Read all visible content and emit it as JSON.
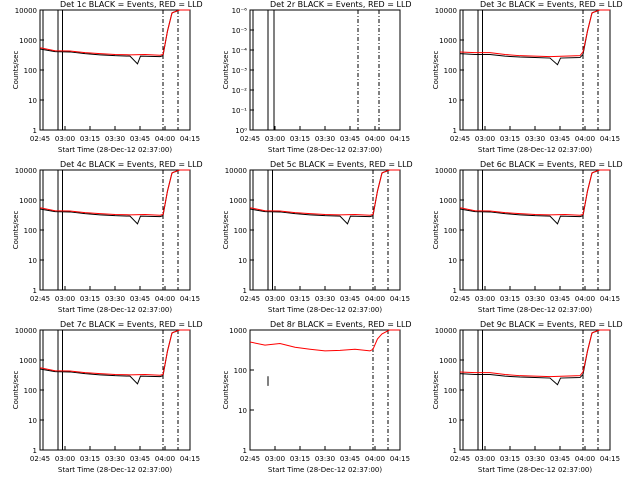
{
  "figure": {
    "xlabel": "Start Time (28-Dec-12 02:37:00)",
    "ylabel": "Counts/sec",
    "colors": {
      "events": "#000000",
      "lld": "#ff0000"
    }
  },
  "chart_data": [
    {
      "type": "line",
      "title": "Det 1c BLACK = Events, RED = LLD",
      "x_tick_labels": [
        "02:45",
        "03:00",
        "03:15",
        "03:30",
        "03:45",
        "04:00",
        "04:15"
      ],
      "xlim": [
        0,
        100
      ],
      "ylim": [
        1,
        10000
      ],
      "y_tick_labels": [
        "1",
        "10",
        "100",
        "1000",
        "10000"
      ],
      "yscale": "log",
      "vlines_solid": [
        2,
        12,
        15
      ],
      "vlines_dash": [
        82,
        92
      ],
      "lld": [
        [
          0,
          550
        ],
        [
          10,
          440
        ],
        [
          20,
          430
        ],
        [
          30,
          380
        ],
        [
          40,
          350
        ],
        [
          50,
          330
        ],
        [
          60,
          320
        ],
        [
          70,
          330
        ],
        [
          80,
          310
        ],
        [
          82,
          330
        ],
        [
          85,
          2000
        ],
        [
          88,
          8000
        ],
        [
          93,
          10000
        ],
        [
          100,
          10000
        ]
      ],
      "events": [
        [
          0,
          500
        ],
        [
          10,
          410
        ],
        [
          20,
          400
        ],
        [
          30,
          350
        ],
        [
          40,
          320
        ],
        [
          50,
          300
        ],
        [
          60,
          290
        ],
        [
          65,
          160
        ],
        [
          67,
          290
        ],
        [
          80,
          280
        ],
        [
          82,
          300
        ],
        [
          85,
          2000
        ],
        [
          88,
          8000
        ],
        [
          93,
          10000
        ],
        [
          100,
          10000
        ]
      ]
    },
    {
      "type": "line",
      "title": "Det 2r BLACK = Events, RED = LLD",
      "x_tick_labels": [
        "02:45",
        "03:00",
        "03:15",
        "03:30",
        "03:45",
        "04:00",
        "04:15"
      ],
      "xlim": [
        0,
        100
      ],
      "ylim": [
        1,
        1e-06
      ],
      "y_tick_labels": [
        "10⁰",
        "10⁻¹",
        "10⁻²",
        "10⁻³",
        "10⁻⁴",
        "10⁻⁵",
        "10⁻⁶"
      ],
      "yscale": "log",
      "vlines_solid": [
        2,
        12,
        16
      ],
      "vlines_dash": [
        72,
        86
      ],
      "lld": [],
      "events": []
    },
    {
      "type": "line",
      "title": "Det 3c BLACK = Events, RED = LLD",
      "x_tick_labels": [
        "02:45",
        "03:00",
        "03:15",
        "03:30",
        "03:45",
        "04:00",
        "04:15"
      ],
      "xlim": [
        0,
        100
      ],
      "ylim": [
        1,
        10000
      ],
      "y_tick_labels": [
        "1",
        "10",
        "100",
        "1000",
        "10000"
      ],
      "yscale": "log",
      "vlines_solid": [
        2,
        12,
        15
      ],
      "vlines_dash": [
        82,
        92
      ],
      "lld": [
        [
          0,
          400
        ],
        [
          10,
          380
        ],
        [
          20,
          380
        ],
        [
          30,
          330
        ],
        [
          40,
          300
        ],
        [
          50,
          290
        ],
        [
          60,
          280
        ],
        [
          70,
          290
        ],
        [
          80,
          300
        ],
        [
          82,
          400
        ],
        [
          85,
          2000
        ],
        [
          88,
          8000
        ],
        [
          93,
          10000
        ],
        [
          100,
          10000
        ]
      ],
      "events": [
        [
          0,
          350
        ],
        [
          10,
          330
        ],
        [
          20,
          330
        ],
        [
          30,
          290
        ],
        [
          40,
          270
        ],
        [
          50,
          260
        ],
        [
          60,
          250
        ],
        [
          65,
          150
        ],
        [
          67,
          250
        ],
        [
          80,
          260
        ],
        [
          82,
          330
        ],
        [
          85,
          2000
        ],
        [
          88,
          8000
        ],
        [
          93,
          10000
        ],
        [
          100,
          10000
        ]
      ]
    },
    {
      "type": "line",
      "title": "Det 4c BLACK = Events, RED = LLD",
      "x_tick_labels": [
        "02:45",
        "03:00",
        "03:15",
        "03:30",
        "03:45",
        "04:00",
        "04:15"
      ],
      "xlim": [
        0,
        100
      ],
      "ylim": [
        1,
        10000
      ],
      "y_tick_labels": [
        "1",
        "10",
        "100",
        "1000",
        "10000"
      ],
      "yscale": "log",
      "vlines_solid": [
        2,
        12,
        15
      ],
      "vlines_dash": [
        82,
        92
      ],
      "lld": [
        [
          0,
          550
        ],
        [
          10,
          440
        ],
        [
          20,
          430
        ],
        [
          30,
          380
        ],
        [
          40,
          350
        ],
        [
          50,
          330
        ],
        [
          60,
          320
        ],
        [
          70,
          330
        ],
        [
          80,
          310
        ],
        [
          82,
          330
        ],
        [
          85,
          2000
        ],
        [
          88,
          8000
        ],
        [
          93,
          10000
        ],
        [
          100,
          10000
        ]
      ],
      "events": [
        [
          0,
          500
        ],
        [
          10,
          410
        ],
        [
          20,
          400
        ],
        [
          30,
          350
        ],
        [
          40,
          320
        ],
        [
          50,
          300
        ],
        [
          60,
          290
        ],
        [
          65,
          160
        ],
        [
          67,
          290
        ],
        [
          80,
          280
        ],
        [
          82,
          300
        ],
        [
          85,
          2000
        ],
        [
          88,
          8000
        ],
        [
          93,
          10000
        ],
        [
          100,
          10000
        ]
      ]
    },
    {
      "type": "line",
      "title": "Det 5c BLACK = Events, RED = LLD",
      "x_tick_labels": [
        "02:45",
        "03:00",
        "03:15",
        "03:30",
        "03:45",
        "04:00",
        "04:15"
      ],
      "xlim": [
        0,
        100
      ],
      "ylim": [
        1,
        10000
      ],
      "y_tick_labels": [
        "1",
        "10",
        "100",
        "1000",
        "10000"
      ],
      "yscale": "log",
      "vlines_solid": [
        2,
        12,
        15
      ],
      "vlines_dash": [
        82,
        92
      ],
      "lld": [
        [
          0,
          550
        ],
        [
          10,
          440
        ],
        [
          20,
          430
        ],
        [
          30,
          380
        ],
        [
          40,
          350
        ],
        [
          50,
          330
        ],
        [
          60,
          320
        ],
        [
          70,
          330
        ],
        [
          80,
          310
        ],
        [
          82,
          330
        ],
        [
          85,
          2000
        ],
        [
          88,
          8000
        ],
        [
          93,
          10000
        ],
        [
          100,
          10000
        ]
      ],
      "events": [
        [
          0,
          500
        ],
        [
          10,
          410
        ],
        [
          20,
          400
        ],
        [
          30,
          350
        ],
        [
          40,
          320
        ],
        [
          50,
          300
        ],
        [
          60,
          290
        ],
        [
          65,
          160
        ],
        [
          67,
          290
        ],
        [
          80,
          280
        ],
        [
          82,
          300
        ],
        [
          85,
          2000
        ],
        [
          88,
          8000
        ],
        [
          93,
          10000
        ],
        [
          100,
          10000
        ]
      ]
    },
    {
      "type": "line",
      "title": "Det 6c BLACK = Events, RED = LLD",
      "x_tick_labels": [
        "02:45",
        "03:00",
        "03:15",
        "03:30",
        "03:45",
        "04:00",
        "04:15"
      ],
      "xlim": [
        0,
        100
      ],
      "ylim": [
        1,
        10000
      ],
      "y_tick_labels": [
        "1",
        "10",
        "100",
        "1000",
        "10000"
      ],
      "yscale": "log",
      "vlines_solid": [
        2,
        12,
        15
      ],
      "vlines_dash": [
        82,
        92
      ],
      "lld": [
        [
          0,
          550
        ],
        [
          10,
          440
        ],
        [
          20,
          430
        ],
        [
          30,
          380
        ],
        [
          40,
          350
        ],
        [
          50,
          330
        ],
        [
          60,
          320
        ],
        [
          70,
          330
        ],
        [
          80,
          310
        ],
        [
          82,
          330
        ],
        [
          85,
          2000
        ],
        [
          88,
          8000
        ],
        [
          93,
          10000
        ],
        [
          100,
          10000
        ]
      ],
      "events": [
        [
          0,
          500
        ],
        [
          10,
          410
        ],
        [
          20,
          400
        ],
        [
          30,
          350
        ],
        [
          40,
          320
        ],
        [
          50,
          300
        ],
        [
          60,
          290
        ],
        [
          65,
          160
        ],
        [
          67,
          290
        ],
        [
          80,
          280
        ],
        [
          82,
          300
        ],
        [
          85,
          2000
        ],
        [
          88,
          8000
        ],
        [
          93,
          10000
        ],
        [
          100,
          10000
        ]
      ]
    },
    {
      "type": "line",
      "title": "Det 7c BLACK = Events, RED = LLD",
      "x_tick_labels": [
        "02:45",
        "03:00",
        "03:15",
        "03:30",
        "03:45",
        "04:00",
        "04:15"
      ],
      "xlim": [
        0,
        100
      ],
      "ylim": [
        1,
        10000
      ],
      "y_tick_labels": [
        "1",
        "10",
        "100",
        "1000",
        "10000"
      ],
      "yscale": "log",
      "vlines_solid": [
        2,
        12,
        15
      ],
      "vlines_dash": [
        82,
        92
      ],
      "lld": [
        [
          0,
          550
        ],
        [
          10,
          440
        ],
        [
          20,
          430
        ],
        [
          30,
          380
        ],
        [
          40,
          350
        ],
        [
          50,
          330
        ],
        [
          60,
          320
        ],
        [
          70,
          330
        ],
        [
          80,
          310
        ],
        [
          82,
          330
        ],
        [
          85,
          2000
        ],
        [
          88,
          8000
        ],
        [
          93,
          10000
        ],
        [
          100,
          10000
        ]
      ],
      "events": [
        [
          0,
          500
        ],
        [
          10,
          410
        ],
        [
          20,
          400
        ],
        [
          30,
          350
        ],
        [
          40,
          320
        ],
        [
          50,
          300
        ],
        [
          60,
          290
        ],
        [
          65,
          160
        ],
        [
          67,
          290
        ],
        [
          80,
          280
        ],
        [
          82,
          300
        ],
        [
          85,
          2000
        ],
        [
          88,
          8000
        ],
        [
          93,
          10000
        ],
        [
          100,
          10000
        ]
      ]
    },
    {
      "type": "line",
      "title": "Det 8r BLACK = Events, RED = LLD",
      "x_tick_labels": [
        "02:45",
        "03:00",
        "03:15",
        "03:30",
        "03:45",
        "04:00",
        "04:15"
      ],
      "xlim": [
        0,
        100
      ],
      "ylim": [
        1,
        1000
      ],
      "y_tick_labels": [
        "1",
        "10",
        "100",
        "1000"
      ],
      "yscale": "log",
      "vlines_solid": [],
      "vlines_dash": [
        82,
        92
      ],
      "lld": [
        [
          0,
          500
        ],
        [
          10,
          420
        ],
        [
          20,
          460
        ],
        [
          30,
          370
        ],
        [
          40,
          330
        ],
        [
          50,
          300
        ],
        [
          60,
          310
        ],
        [
          70,
          330
        ],
        [
          80,
          300
        ],
        [
          82,
          330
        ],
        [
          85,
          600
        ],
        [
          88,
          800
        ],
        [
          93,
          1000
        ],
        [
          100,
          1000
        ]
      ],
      "events": [
        [
          12,
          40
        ],
        [
          12,
          70
        ]
      ]
    },
    {
      "type": "line",
      "title": "Det 9c BLACK = Events, RED = LLD",
      "x_tick_labels": [
        "02:45",
        "03:00",
        "03:15",
        "03:30",
        "03:45",
        "04:00",
        "04:15"
      ],
      "xlim": [
        0,
        100
      ],
      "ylim": [
        1,
        10000
      ],
      "y_tick_labels": [
        "1",
        "10",
        "100",
        "1000",
        "10000"
      ],
      "yscale": "log",
      "vlines_solid": [
        2,
        12,
        15
      ],
      "vlines_dash": [
        82,
        92
      ],
      "lld": [
        [
          0,
          400
        ],
        [
          10,
          380
        ],
        [
          20,
          380
        ],
        [
          30,
          330
        ],
        [
          40,
          300
        ],
        [
          50,
          290
        ],
        [
          60,
          280
        ],
        [
          70,
          290
        ],
        [
          80,
          300
        ],
        [
          82,
          400
        ],
        [
          85,
          2000
        ],
        [
          88,
          8000
        ],
        [
          93,
          10000
        ],
        [
          100,
          10000
        ]
      ],
      "events": [
        [
          0,
          350
        ],
        [
          10,
          330
        ],
        [
          20,
          330
        ],
        [
          30,
          290
        ],
        [
          40,
          270
        ],
        [
          50,
          260
        ],
        [
          60,
          250
        ],
        [
          65,
          150
        ],
        [
          67,
          250
        ],
        [
          80,
          260
        ],
        [
          82,
          330
        ],
        [
          85,
          2000
        ],
        [
          88,
          8000
        ],
        [
          93,
          10000
        ],
        [
          100,
          10000
        ]
      ]
    }
  ]
}
